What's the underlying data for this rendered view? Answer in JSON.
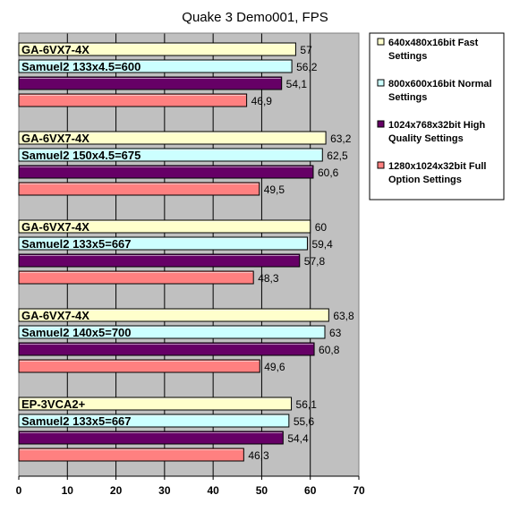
{
  "chart_data": {
    "type": "bar",
    "orientation": "horizontal",
    "title": "Quake 3 Demo001, FPS",
    "xlabel": "",
    "ylabel": "",
    "xlim": [
      0,
      70
    ],
    "x_ticks": [
      0,
      10,
      20,
      30,
      40,
      50,
      60,
      70
    ],
    "grid": "vertical",
    "legend_position": "right",
    "series": [
      {
        "name": "640x480x16bit Fast Settings",
        "color": "#ffffcc"
      },
      {
        "name": "800x600x16bit Normal Settings",
        "color": "#ccffff"
      },
      {
        "name": "1024x768x32bit High Quality Settings",
        "color": "#660066"
      },
      {
        "name": "1280x1024x32bit Full Option Settings",
        "color": "#ff8080"
      }
    ],
    "groups": [
      {
        "labels": [
          "GA-6VX7-4X",
          "Samuel2 133x4.5=600"
        ],
        "values": [
          57,
          56.2,
          54.1,
          46.9
        ],
        "value_labels": [
          "57",
          "56,2",
          "54,1",
          "46,9"
        ]
      },
      {
        "labels": [
          "GA-6VX7-4X",
          "Samuel2 150x4.5=675"
        ],
        "values": [
          63.2,
          62.5,
          60.6,
          49.5
        ],
        "value_labels": [
          "63,2",
          "62,5",
          "60,6",
          "49,5"
        ]
      },
      {
        "labels": [
          "GA-6VX7-4X",
          "Samuel2 133x5=667"
        ],
        "values": [
          60,
          59.4,
          57.8,
          48.3
        ],
        "value_labels": [
          "60",
          "59,4",
          "57,8",
          "48,3"
        ]
      },
      {
        "labels": [
          "GA-6VX7-4X",
          "Samuel2 140x5=700"
        ],
        "values": [
          63.8,
          63,
          60.8,
          49.6
        ],
        "value_labels": [
          "63,8",
          "63",
          "60,8",
          "49,6"
        ]
      },
      {
        "labels": [
          "EP-3VCA2+",
          "Samuel2 133x5=667"
        ],
        "values": [
          56.1,
          55.6,
          54.4,
          46.3
        ],
        "value_labels": [
          "56,1",
          "55,6",
          "54,4",
          "46,3"
        ]
      }
    ]
  }
}
